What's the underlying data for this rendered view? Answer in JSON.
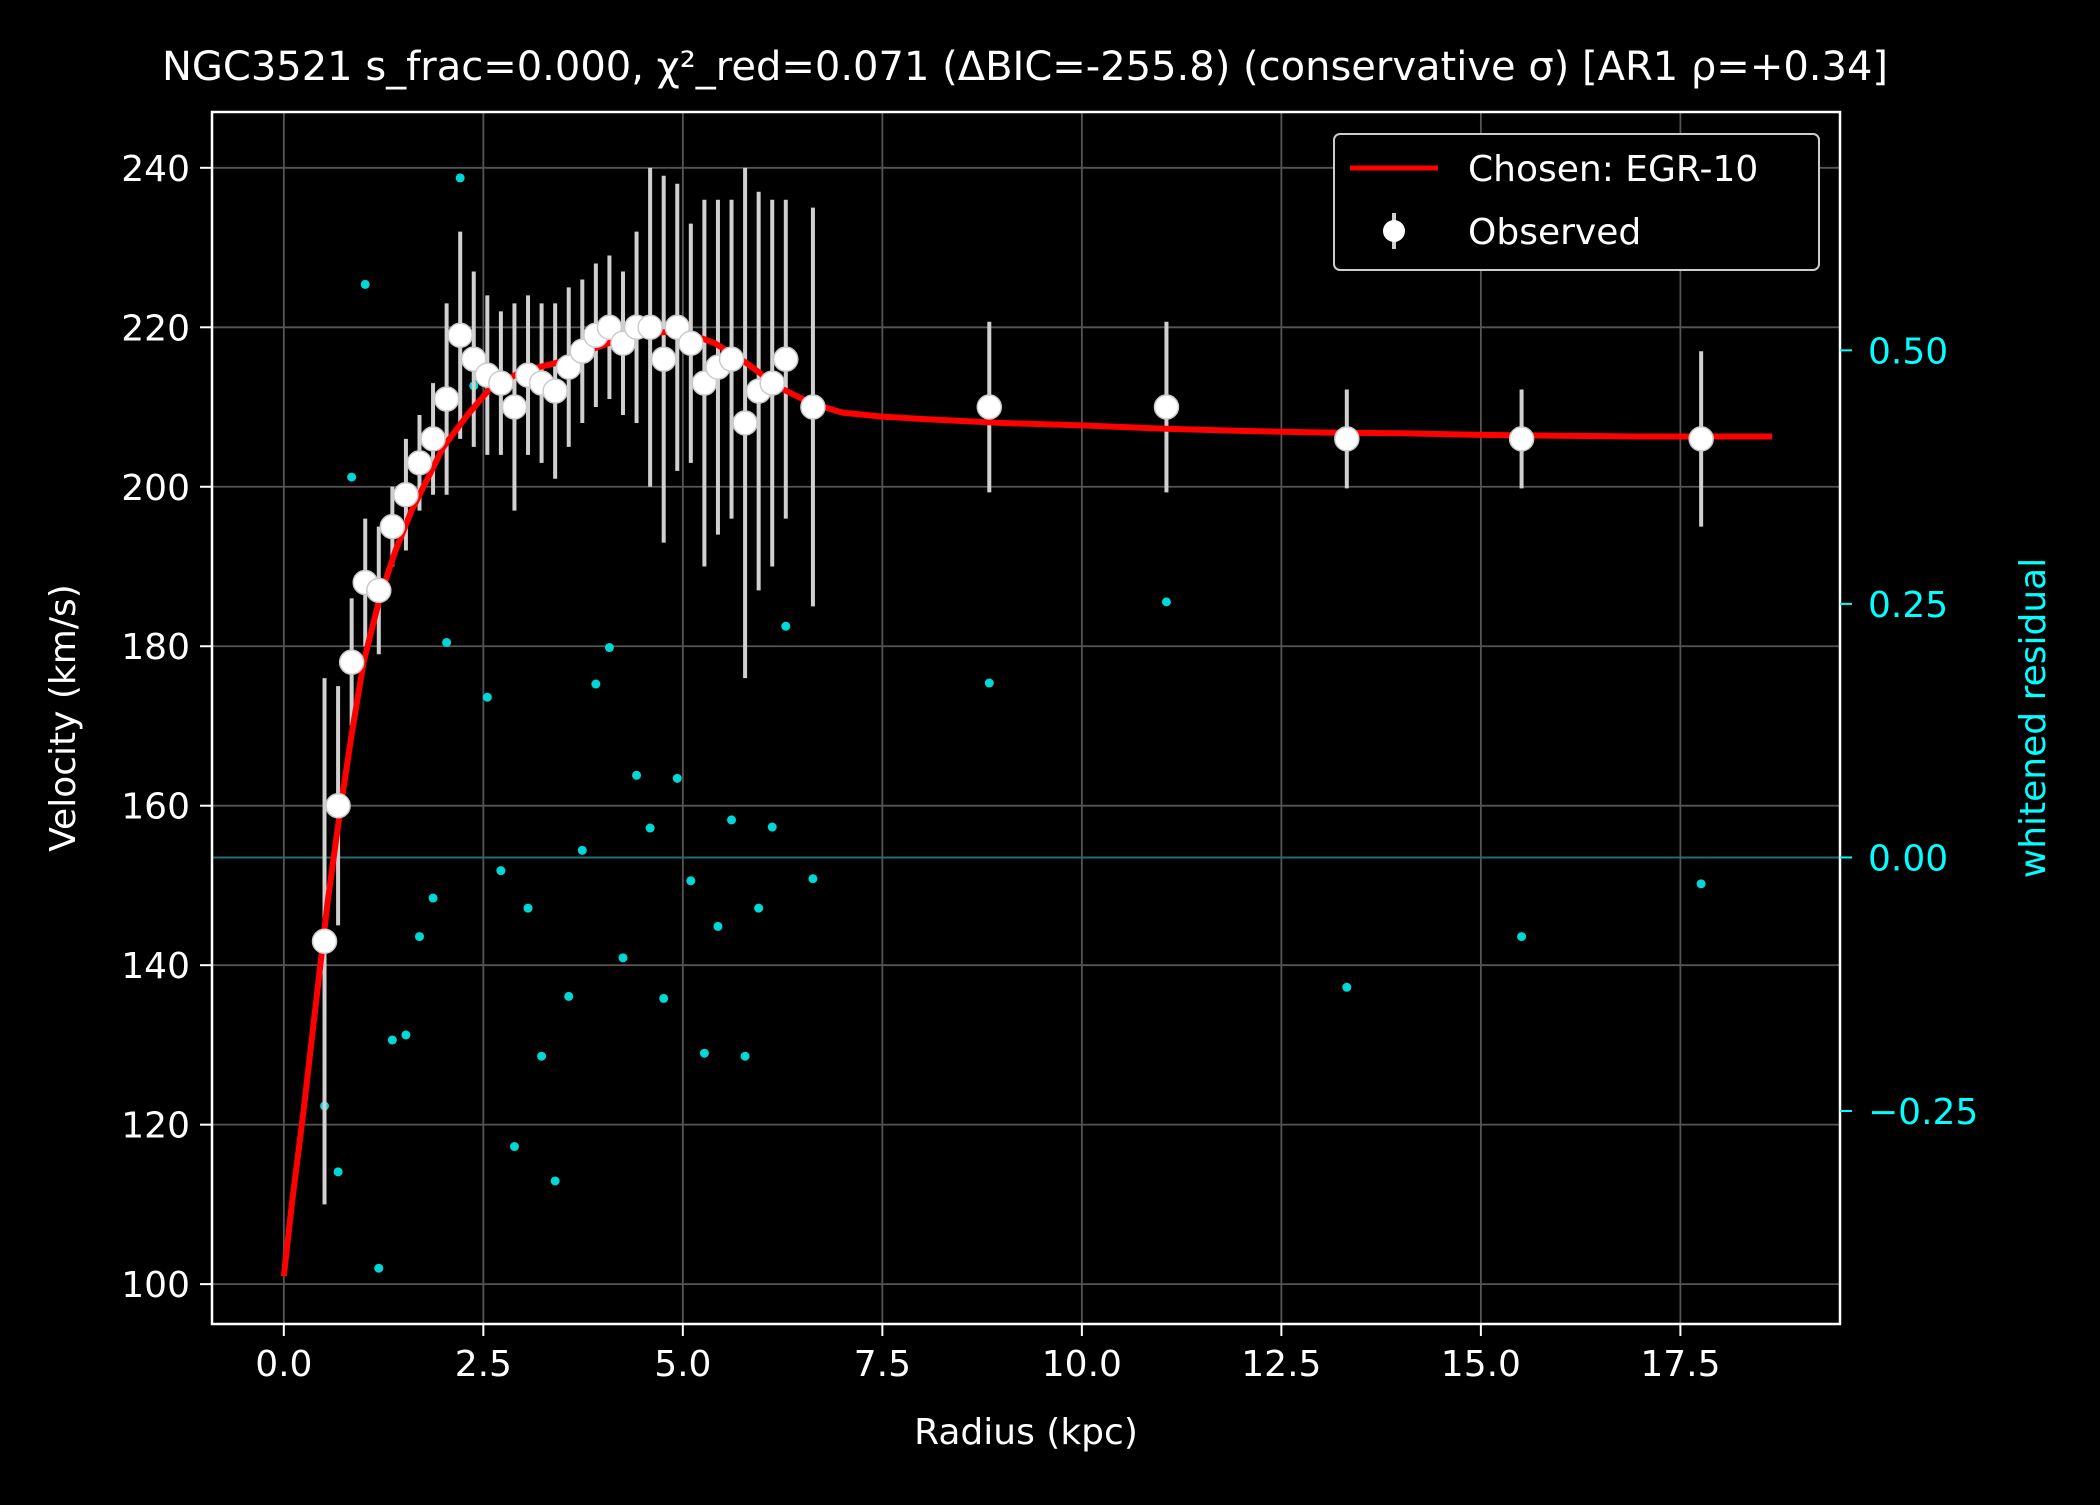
{
  "chart_data": {
    "type": "scatter",
    "title": "NGC3521  s_frac=0.000, χ²_red=0.071  (ΔBIC=-255.8) (conservative σ) [AR1 ρ=+0.34]",
    "xlabel": "Radius (kpc)",
    "ylabel": "Velocity (km/s)",
    "y2label": "whitened residual",
    "xlim": [
      -0.9,
      19.5
    ],
    "ylim": [
      95,
      247
    ],
    "y2lim": [
      -0.46,
      0.735
    ],
    "xticks": [
      "0.0",
      "2.5",
      "5.0",
      "7.5",
      "10.0",
      "12.5",
      "15.0",
      "17.5"
    ],
    "yticks": [
      "100",
      "120",
      "140",
      "160",
      "180",
      "200",
      "220",
      "240"
    ],
    "y2ticks": [
      "−0.25",
      "0.00",
      "0.25",
      "0.50"
    ],
    "grid": true,
    "legend_position": "top-right",
    "colors": {
      "background": "#000000",
      "axes": "#ffffff",
      "text": "#ffffff",
      "model": "#ff0000",
      "observed": "#ffffff",
      "errorbar": "#d0d0d0",
      "residual": "#00d8d8",
      "residual_axis": "#00ffff"
    },
    "series": [
      {
        "name": "Chosen: EGR-10",
        "kind": "line",
        "x": [
          0.0,
          0.1,
          0.25,
          0.4,
          0.55,
          0.7,
          0.85,
          1.0,
          1.2,
          1.4,
          1.6,
          1.8,
          2.0,
          2.3,
          2.6,
          3.0,
          3.4,
          3.8,
          4.2,
          4.6,
          5.0,
          5.4,
          5.8,
          6.2,
          6.6,
          7.0,
          7.5,
          8.0,
          9.0,
          10.0,
          11.0,
          12.0,
          13.0,
          14.0,
          15.0,
          16.0,
          17.0,
          18.0,
          18.65
        ],
        "y": [
          101,
          110,
          122,
          135,
          148,
          159,
          169,
          178,
          186,
          192,
          197,
          201,
          205,
          209,
          212.5,
          214.5,
          215.5,
          217,
          218.5,
          219.3,
          219.5,
          218,
          215.5,
          212.5,
          210.5,
          209.3,
          208.8,
          208.5,
          208.0,
          207.7,
          207.3,
          207.0,
          206.8,
          206.7,
          206.5,
          206.4,
          206.3,
          206.3,
          206.3
        ]
      },
      {
        "name": "Observed",
        "kind": "errorbar",
        "x": [
          0.51,
          0.68,
          0.85,
          1.02,
          1.19,
          1.36,
          1.53,
          1.7,
          1.87,
          2.04,
          2.21,
          2.38,
          2.55,
          2.72,
          2.89,
          3.06,
          3.23,
          3.4,
          3.57,
          3.74,
          3.91,
          4.08,
          4.25,
          4.42,
          4.59,
          4.76,
          4.93,
          5.1,
          5.27,
          5.44,
          5.61,
          5.78,
          5.95,
          6.12,
          6.29,
          6.63,
          8.84,
          11.06,
          13.32,
          15.51,
          17.76
        ],
        "y": [
          143,
          160,
          178,
          188,
          187,
          195,
          199,
          203,
          206,
          211,
          219,
          216,
          214,
          213,
          210,
          214,
          213,
          212,
          215,
          217,
          219,
          220,
          218,
          220,
          220,
          216,
          220,
          218,
          213,
          215,
          216,
          208,
          212,
          213,
          216,
          210,
          210,
          210,
          206,
          206,
          206
        ],
        "err": [
          33,
          15,
          8,
          8,
          8,
          5,
          7,
          6,
          7,
          12,
          13,
          11,
          10,
          9,
          13,
          10,
          10,
          11,
          10,
          9,
          9,
          9,
          9,
          12,
          20,
          23,
          18,
          15,
          23,
          21,
          20,
          32,
          25,
          23,
          20,
          25,
          10.7,
          10.7,
          6.2,
          6.2,
          11
        ]
      },
      {
        "name": "whitened residual",
        "kind": "scatter",
        "axis": "right",
        "x": [
          0.51,
          0.68,
          0.85,
          1.02,
          1.19,
          1.36,
          1.53,
          1.7,
          1.87,
          2.04,
          2.21,
          2.38,
          2.55,
          2.72,
          2.89,
          3.06,
          3.23,
          3.4,
          3.57,
          3.74,
          3.91,
          4.08,
          4.25,
          4.42,
          4.59,
          4.76,
          4.93,
          5.1,
          5.27,
          5.44,
          5.61,
          5.78,
          5.95,
          6.12,
          6.29,
          6.63,
          8.84,
          11.06,
          13.32,
          15.51,
          17.76
        ],
        "y": [
          -0.245,
          -0.31,
          0.375,
          0.565,
          -0.405,
          -0.18,
          -0.175,
          -0.078,
          -0.04,
          0.212,
          0.67,
          0.465,
          0.158,
          -0.013,
          -0.285,
          -0.05,
          -0.196,
          -0.319,
          -0.137,
          0.007,
          0.171,
          0.207,
          -0.099,
          0.081,
          0.029,
          -0.139,
          0.078,
          -0.023,
          -0.193,
          -0.068,
          0.037,
          -0.196,
          -0.05,
          0.03,
          0.228,
          -0.021,
          0.172,
          0.252,
          -0.128,
          -0.078,
          -0.026
        ]
      }
    ]
  }
}
